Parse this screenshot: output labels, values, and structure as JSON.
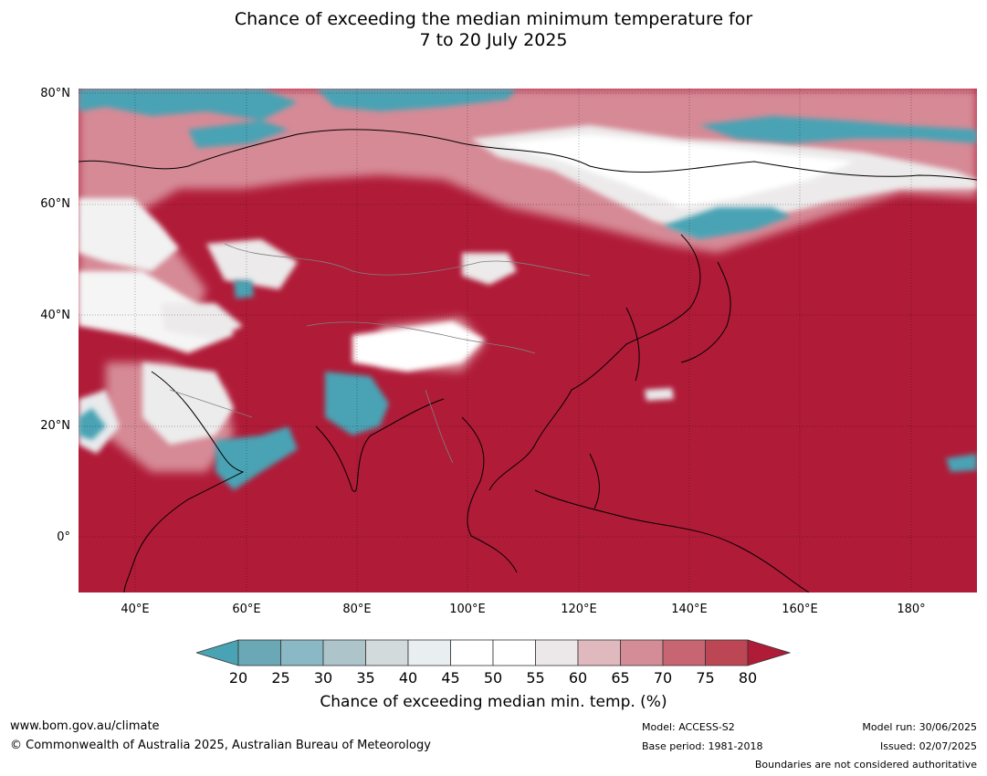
{
  "title_line1": "Chance of exceeding the median minimum temperature for",
  "title_line2": "7 to 20 July 2025",
  "map": {
    "lat_labels": [
      "80°N",
      "60°N",
      "40°N",
      "20°N",
      "0°"
    ],
    "lon_labels": [
      "40°E",
      "60°E",
      "80°E",
      "100°E",
      "120°E",
      "140°E",
      "160°E",
      "180°"
    ],
    "colors": {
      "ocean_high": "#b01b38",
      "land_high": "#b01b38",
      "teal": "#4aa3b4",
      "white": "#ffffff",
      "light_grey": "#e8eaec",
      "pink": "#d68a96",
      "coast": "#000000",
      "border": "#808080"
    }
  },
  "colorbar": {
    "ticks": [
      "20",
      "25",
      "30",
      "35",
      "40",
      "45",
      "50",
      "55",
      "60",
      "65",
      "70",
      "75",
      "80"
    ],
    "colors": [
      "#6ba8b5",
      "#8ab9c5",
      "#adc4cb",
      "#d3dadc",
      "#e9eff1",
      "#ffffff",
      "#ffffff",
      "#ece8ea",
      "#e0b9bf",
      "#d48d97",
      "#c76572",
      "#bd4654"
    ],
    "low_color": "#4aa3b4",
    "high_color": "#b01b38",
    "label": "Chance of exceeding median min. temp. (%)"
  },
  "footer": {
    "website": "www.bom.gov.au/climate",
    "copyright": "© Commonwealth of Australia 2025, Australian Bureau of Meteorology",
    "model": "Model: ACCESS-S2",
    "base_period": "Base period: 1981-2018",
    "model_run": "Model run: 30/06/2025",
    "issued": "Issued: 02/07/2025",
    "boundaries": "Boundaries are not considered authoritative"
  }
}
